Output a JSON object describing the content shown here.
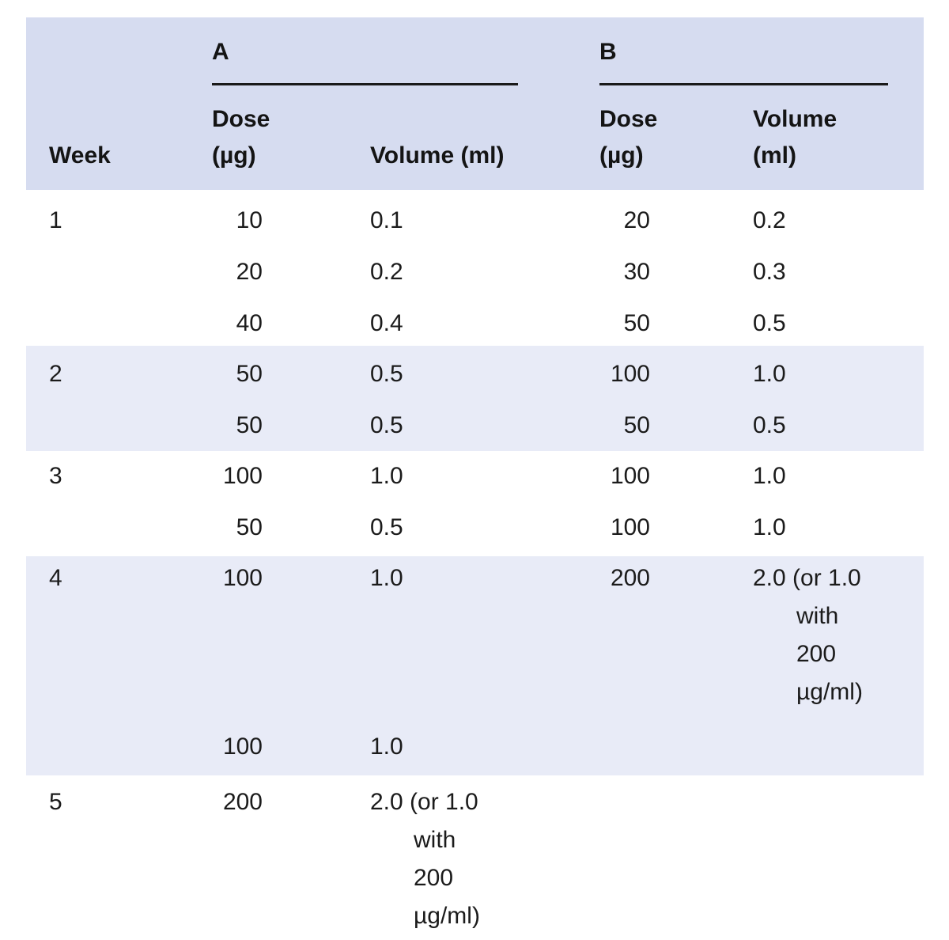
{
  "colors": {
    "header_bg": "#d6dcf0",
    "band_bg": "#e8ebf7",
    "text": "#1b1b1b",
    "rule": "#1a1a1a"
  },
  "header": {
    "group_a_label": "A",
    "group_b_label": "B",
    "week_label": "Week",
    "a_dose_line1": "Dose",
    "a_dose_line2": "(µg)",
    "a_volume_label": "Volume (ml)",
    "b_dose_line1": "Dose",
    "b_dose_line2": "(µg)",
    "b_volume_line1": "Volume",
    "b_volume_line2": "(ml)"
  },
  "weeks": [
    {
      "week": "1",
      "rows": [
        {
          "a_dose": "10",
          "a_volume": "0.1",
          "b_dose": "20",
          "b_volume": "0.2"
        },
        {
          "a_dose": "20",
          "a_volume": "0.2",
          "b_dose": "30",
          "b_volume": "0.3"
        },
        {
          "a_dose": "40",
          "a_volume": "0.4",
          "b_dose": "50",
          "b_volume": "0.5"
        }
      ]
    },
    {
      "week": "2",
      "rows": [
        {
          "a_dose": "50",
          "a_volume": "0.5",
          "b_dose": "100",
          "b_volume": "1.0"
        },
        {
          "a_dose": "50",
          "a_volume": "0.5",
          "b_dose": "50",
          "b_volume": "0.5"
        }
      ]
    },
    {
      "week": "3",
      "rows": [
        {
          "a_dose": "100",
          "a_volume": "1.0",
          "b_dose": "100",
          "b_volume": "1.0"
        },
        {
          "a_dose": "50",
          "a_volume": "0.5",
          "b_dose": "100",
          "b_volume": "1.0"
        }
      ]
    },
    {
      "week": "4",
      "rows": [
        {
          "a_dose": "100",
          "a_volume": "1.0",
          "b_dose": "200",
          "b_volume": "2.0 (or 1.0 with 200 µg/ml)"
        },
        {
          "a_dose": "100",
          "a_volume": "1.0",
          "b_dose": "",
          "b_volume": ""
        }
      ]
    },
    {
      "week": "5",
      "rows": [
        {
          "a_dose": "200",
          "a_volume": "2.0 (or 1.0 with 200 µg/ml)",
          "b_dose": "",
          "b_volume": ""
        }
      ]
    }
  ]
}
